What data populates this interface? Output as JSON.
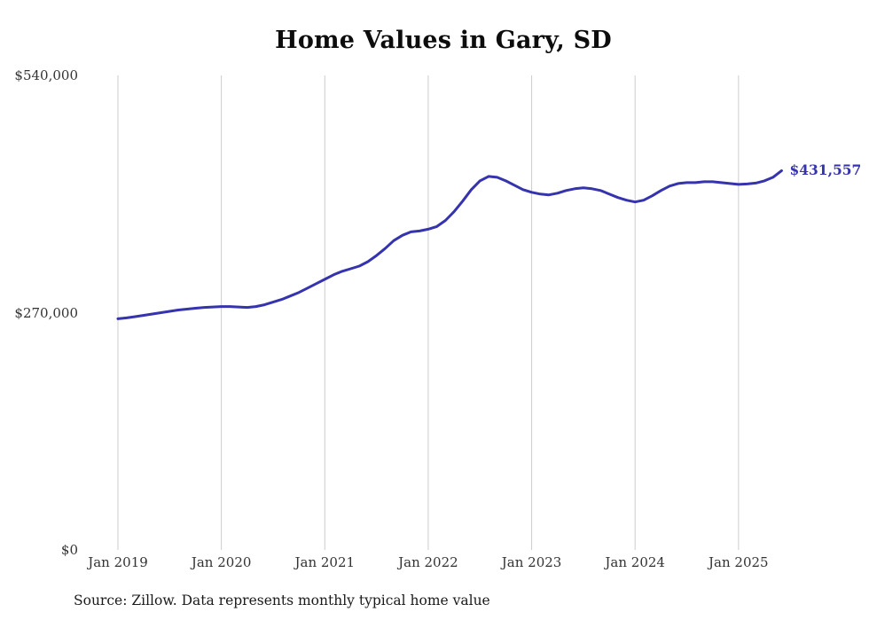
{
  "chart_data": {
    "type": "line",
    "title": "Home Values in Gary, SD",
    "source": "Source: Zillow. Data represents monthly typical home value",
    "end_label": "$431,557",
    "xlabel": "",
    "ylabel": "",
    "ylim": [
      0,
      540000
    ],
    "grid": "vertical-only",
    "legend": "none",
    "line_color": "#3533ad",
    "gridline_color": "#cccccc",
    "y_ticks": [
      {
        "value": 0,
        "label": "$0"
      },
      {
        "value": 270000,
        "label": "$270,000"
      },
      {
        "value": 540000,
        "label": "$540,000"
      }
    ],
    "x_ticks": [
      {
        "index": 0,
        "label": "Jan 2019"
      },
      {
        "index": 12,
        "label": "Jan 2020"
      },
      {
        "index": 24,
        "label": "Jan 2021"
      },
      {
        "index": 36,
        "label": "Jan 2022"
      },
      {
        "index": 48,
        "label": "Jan 2023"
      },
      {
        "index": 60,
        "label": "Jan 2024"
      },
      {
        "index": 72,
        "label": "Jan 2025"
      }
    ],
    "x": [
      "2019-01",
      "2019-02",
      "2019-03",
      "2019-04",
      "2019-05",
      "2019-06",
      "2019-07",
      "2019-08",
      "2019-09",
      "2019-10",
      "2019-11",
      "2019-12",
      "2020-01",
      "2020-02",
      "2020-03",
      "2020-04",
      "2020-05",
      "2020-06",
      "2020-07",
      "2020-08",
      "2020-09",
      "2020-10",
      "2020-11",
      "2020-12",
      "2021-01",
      "2021-02",
      "2021-03",
      "2021-04",
      "2021-05",
      "2021-06",
      "2021-07",
      "2021-08",
      "2021-09",
      "2021-10",
      "2021-11",
      "2021-12",
      "2022-01",
      "2022-02",
      "2022-03",
      "2022-04",
      "2022-05",
      "2022-06",
      "2022-07",
      "2022-08",
      "2022-09",
      "2022-10",
      "2022-11",
      "2022-12",
      "2023-01",
      "2023-02",
      "2023-03",
      "2023-04",
      "2023-05",
      "2023-06",
      "2023-07",
      "2023-08",
      "2023-09",
      "2023-10",
      "2023-11",
      "2023-12",
      "2024-01",
      "2024-02",
      "2024-03",
      "2024-04",
      "2024-05",
      "2024-06",
      "2024-07",
      "2024-08",
      "2024-09",
      "2024-10",
      "2024-11",
      "2024-12",
      "2025-01",
      "2025-02",
      "2025-03",
      "2025-04",
      "2025-05",
      "2025-06"
    ],
    "series": [
      {
        "name": "Typical home value",
        "values": [
          263000,
          264000,
          265500,
          267000,
          268500,
          270000,
          271500,
          273000,
          274000,
          275000,
          276000,
          276500,
          277000,
          277000,
          276500,
          276000,
          277000,
          279000,
          282000,
          285000,
          289000,
          293000,
          298000,
          303000,
          308000,
          313000,
          317000,
          320000,
          323000,
          328000,
          335000,
          343000,
          352000,
          358000,
          362000,
          363000,
          365000,
          368000,
          375000,
          385000,
          397000,
          410000,
          420000,
          425000,
          424000,
          420000,
          415000,
          410000,
          407000,
          405000,
          404000,
          406000,
          409000,
          411000,
          412000,
          411000,
          409000,
          405000,
          401000,
          398000,
          396000,
          398000,
          403000,
          409000,
          414000,
          417000,
          418000,
          418000,
          419000,
          419000,
          418000,
          417000,
          416000,
          416500,
          417500,
          420000,
          424000,
          431557
        ]
      }
    ]
  }
}
